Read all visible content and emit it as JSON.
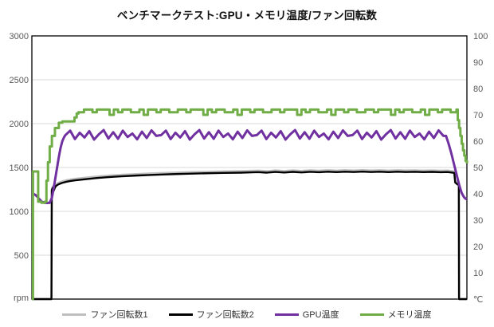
{
  "chart_data": {
    "type": "line",
    "title": "ベンチマークテスト:GPU・メモリ温度/ファン回転数",
    "x_axis": {
      "range": [
        0,
        100
      ],
      "tick_labels_visible": false
    },
    "y_left": {
      "unit_label": "rpm",
      "range": [
        0,
        3000
      ],
      "tick_step": 500,
      "tick_values": [
        3000,
        2500,
        2000,
        1500,
        1000,
        500
      ],
      "label_color": "#595959"
    },
    "y_right": {
      "unit_label": "℃",
      "range": [
        0,
        100
      ],
      "tick_step": 10,
      "tick_values": [
        100,
        90,
        80,
        70,
        60,
        50,
        40,
        30,
        20,
        10
      ],
      "label_color": "#595959"
    },
    "gridlines": {
      "color": "#d9d9d9",
      "at_rpm": [
        500,
        1000,
        1500,
        2000,
        2500
      ]
    },
    "plot_border_color": "#000000",
    "legend_position": "bottom",
    "series": [
      {
        "key": "fan1",
        "name": "ファン回転数1",
        "axis": "left",
        "color": "#bfbfbf",
        "width": 2.4,
        "step": false,
        "segments": [
          {
            "points": [
              [
                0,
                0
              ],
              [
                4.5,
                0
              ],
              [
                4.58,
                1258
              ],
              [
                4.8,
                1286
              ],
              [
                5.0,
                1252
              ],
              [
                5.3,
                1288
              ],
              [
                5.6,
                1310
              ],
              [
                6,
                1323
              ],
              [
                6.5,
                1334
              ],
              [
                7,
                1343
              ],
              [
                8,
                1356
              ],
              [
                9,
                1365
              ],
              [
                10,
                1372
              ],
              [
                11.5,
                1380
              ],
              [
                13,
                1388
              ],
              [
                15,
                1398
              ],
              [
                17,
                1406
              ],
              [
                19,
                1413
              ],
              [
                21,
                1419
              ],
              [
                24,
                1426
              ],
              [
                27,
                1432
              ],
              [
                30,
                1438
              ],
              [
                33,
                1443
              ],
              [
                36,
                1447
              ],
              [
                40,
                1452
              ],
              [
                44,
                1456
              ],
              [
                48,
                1459
              ],
              [
                52,
                1465
              ],
              [
                54,
                1459
              ],
              [
                56,
                1467
              ],
              [
                58,
                1461
              ],
              [
                60,
                1468
              ],
              [
                62,
                1462
              ],
              [
                64,
                1469
              ],
              [
                66,
                1464
              ],
              [
                68,
                1470
              ],
              [
                70,
                1465
              ],
              [
                72,
                1470
              ],
              [
                74,
                1466
              ],
              [
                76,
                1471
              ],
              [
                78,
                1466
              ],
              [
                80,
                1470
              ],
              [
                82,
                1465
              ],
              [
                84,
                1470
              ],
              [
                86,
                1466
              ],
              [
                88,
                1469
              ],
              [
                90,
                1465
              ],
              [
                92,
                1468
              ],
              [
                94,
                1464
              ],
              [
                95.5,
                1466
              ],
              [
                96.5,
                1461
              ],
              [
                97.1,
                1456
              ],
              [
                97.3,
                1348
              ],
              [
                97.8,
                1326
              ],
              [
                98.1,
                1318
              ],
              [
                98.15,
                0
              ],
              [
                100,
                0
              ]
            ]
          }
        ]
      },
      {
        "key": "fan2",
        "name": "ファン回転数2",
        "axis": "left",
        "color": "#000000",
        "width": 2.4,
        "step": false,
        "segments": [
          {
            "points": [
              [
                0,
                0
              ],
              [
                4.5,
                0
              ],
              [
                4.58,
                1240
              ],
              [
                4.8,
                1268
              ],
              [
                5.0,
                1234
              ],
              [
                5.3,
                1270
              ],
              [
                5.6,
                1292
              ],
              [
                6,
                1305
              ],
              [
                6.5,
                1316
              ],
              [
                7,
                1325
              ],
              [
                8,
                1338
              ],
              [
                9,
                1347
              ],
              [
                10,
                1354
              ],
              [
                11.5,
                1362
              ],
              [
                13,
                1370
              ],
              [
                15,
                1380
              ],
              [
                17,
                1388
              ],
              [
                19,
                1395
              ],
              [
                21,
                1401
              ],
              [
                24,
                1408
              ],
              [
                27,
                1414
              ],
              [
                30,
                1420
              ],
              [
                33,
                1425
              ],
              [
                36,
                1429
              ],
              [
                40,
                1434
              ],
              [
                44,
                1438
              ],
              [
                48,
                1441
              ],
              [
                52,
                1447
              ],
              [
                54,
                1441
              ],
              [
                56,
                1449
              ],
              [
                58,
                1443
              ],
              [
                60,
                1450
              ],
              [
                62,
                1444
              ],
              [
                64,
                1451
              ],
              [
                66,
                1446
              ],
              [
                68,
                1452
              ],
              [
                70,
                1447
              ],
              [
                72,
                1452
              ],
              [
                74,
                1448
              ],
              [
                76,
                1453
              ],
              [
                78,
                1448
              ],
              [
                80,
                1452
              ],
              [
                82,
                1447
              ],
              [
                84,
                1452
              ],
              [
                86,
                1448
              ],
              [
                88,
                1451
              ],
              [
                90,
                1447
              ],
              [
                92,
                1450
              ],
              [
                94,
                1446
              ],
              [
                95.5,
                1448
              ],
              [
                96.5,
                1443
              ],
              [
                97.1,
                1438
              ],
              [
                97.3,
                1330
              ],
              [
                97.8,
                1308
              ],
              [
                98.15,
                1300
              ],
              [
                98.2,
                0
              ],
              [
                100,
                0
              ]
            ]
          }
        ]
      },
      {
        "key": "gpu-temp",
        "name": "GPU温度",
        "axis": "right",
        "color": "#7030a0",
        "width": 3,
        "step": false,
        "segments": [
          {
            "points": [
              [
                0.3,
                40
              ],
              [
                0.8,
                39.6
              ],
              [
                1.3,
                38.8
              ],
              [
                1.8,
                37.8
              ],
              [
                2.3,
                37
              ],
              [
                2.9,
                36.6
              ],
              [
                3.5,
                36.5
              ],
              [
                4.1,
                36.6
              ],
              [
                4.6,
                38.5
              ],
              [
                5.0,
                42
              ],
              [
                5.4,
                46
              ],
              [
                5.8,
                50
              ],
              [
                6.2,
                54
              ],
              [
                6.6,
                57.5
              ],
              [
                7.0,
                60
              ],
              [
                7.4,
                61.5
              ]
            ]
          },
          {
            "from": 7.7,
            "step": 1.1,
            "repeat": 4,
            "until": 94.7,
            "values": [
              62.3,
              64.0,
              60.8,
              63.2,
              61.4,
              63.8,
              60.6,
              62.6,
              64.2,
              61.0,
              63.4,
              60.9,
              64.0,
              61.6,
              62.9,
              60.7,
              63.6,
              61.2,
              64.1,
              62.0
            ]
          },
          {
            "points": [
              [
                95.2,
                62
              ],
              [
                95.8,
                59
              ],
              [
                96.4,
                55.5
              ],
              [
                97.0,
                51.5
              ],
              [
                97.6,
                47.5
              ],
              [
                98.2,
                43.5
              ],
              [
                98.8,
                40.3
              ],
              [
                99.3,
                38.8
              ],
              [
                99.7,
                38.1
              ],
              [
                100,
                38
              ]
            ]
          }
        ]
      },
      {
        "key": "memory-temp",
        "name": "メモリ温度",
        "axis": "right",
        "color": "#70ad47",
        "width": 3,
        "step": true,
        "segments": [
          {
            "points": [
              [
                0,
                0
              ],
              [
                0.25,
                48.5
              ],
              [
                1.3,
                48.5
              ],
              [
                1.45,
                37
              ],
              [
                2.2,
                36.6
              ],
              [
                3.0,
                37
              ],
              [
                3.35,
                45
              ],
              [
                3.7,
                52
              ],
              [
                4.1,
                58
              ],
              [
                4.6,
                62
              ],
              [
                5.3,
                65
              ],
              [
                6.2,
                67
              ],
              [
                7.0,
                67.5
              ],
              [
                9.2,
                67.5
              ],
              [
                9.8,
                69
              ],
              [
                10.3,
                70.5
              ],
              [
                10.7,
                71
              ]
            ]
          },
          {
            "from": 11,
            "step": 0.98,
            "repeat": 4,
            "until": 97.4,
            "values": [
              71,
              72,
              72,
              71,
              72,
              72,
              72,
              70,
              72,
              71,
              72,
              72,
              71,
              71,
              72,
              70,
              72,
              72,
              71,
              72,
              72,
              71
            ]
          },
          {
            "points": [
              [
                97.6,
                72
              ],
              [
                97.9,
                68
              ],
              [
                98.2,
                65
              ],
              [
                98.5,
                62
              ],
              [
                98.8,
                59
              ],
              [
                99.1,
                56.5
              ],
              [
                99.4,
                54.5
              ],
              [
                99.7,
                52.5
              ],
              [
                100,
                51.5
              ]
            ]
          }
        ]
      }
    ]
  }
}
